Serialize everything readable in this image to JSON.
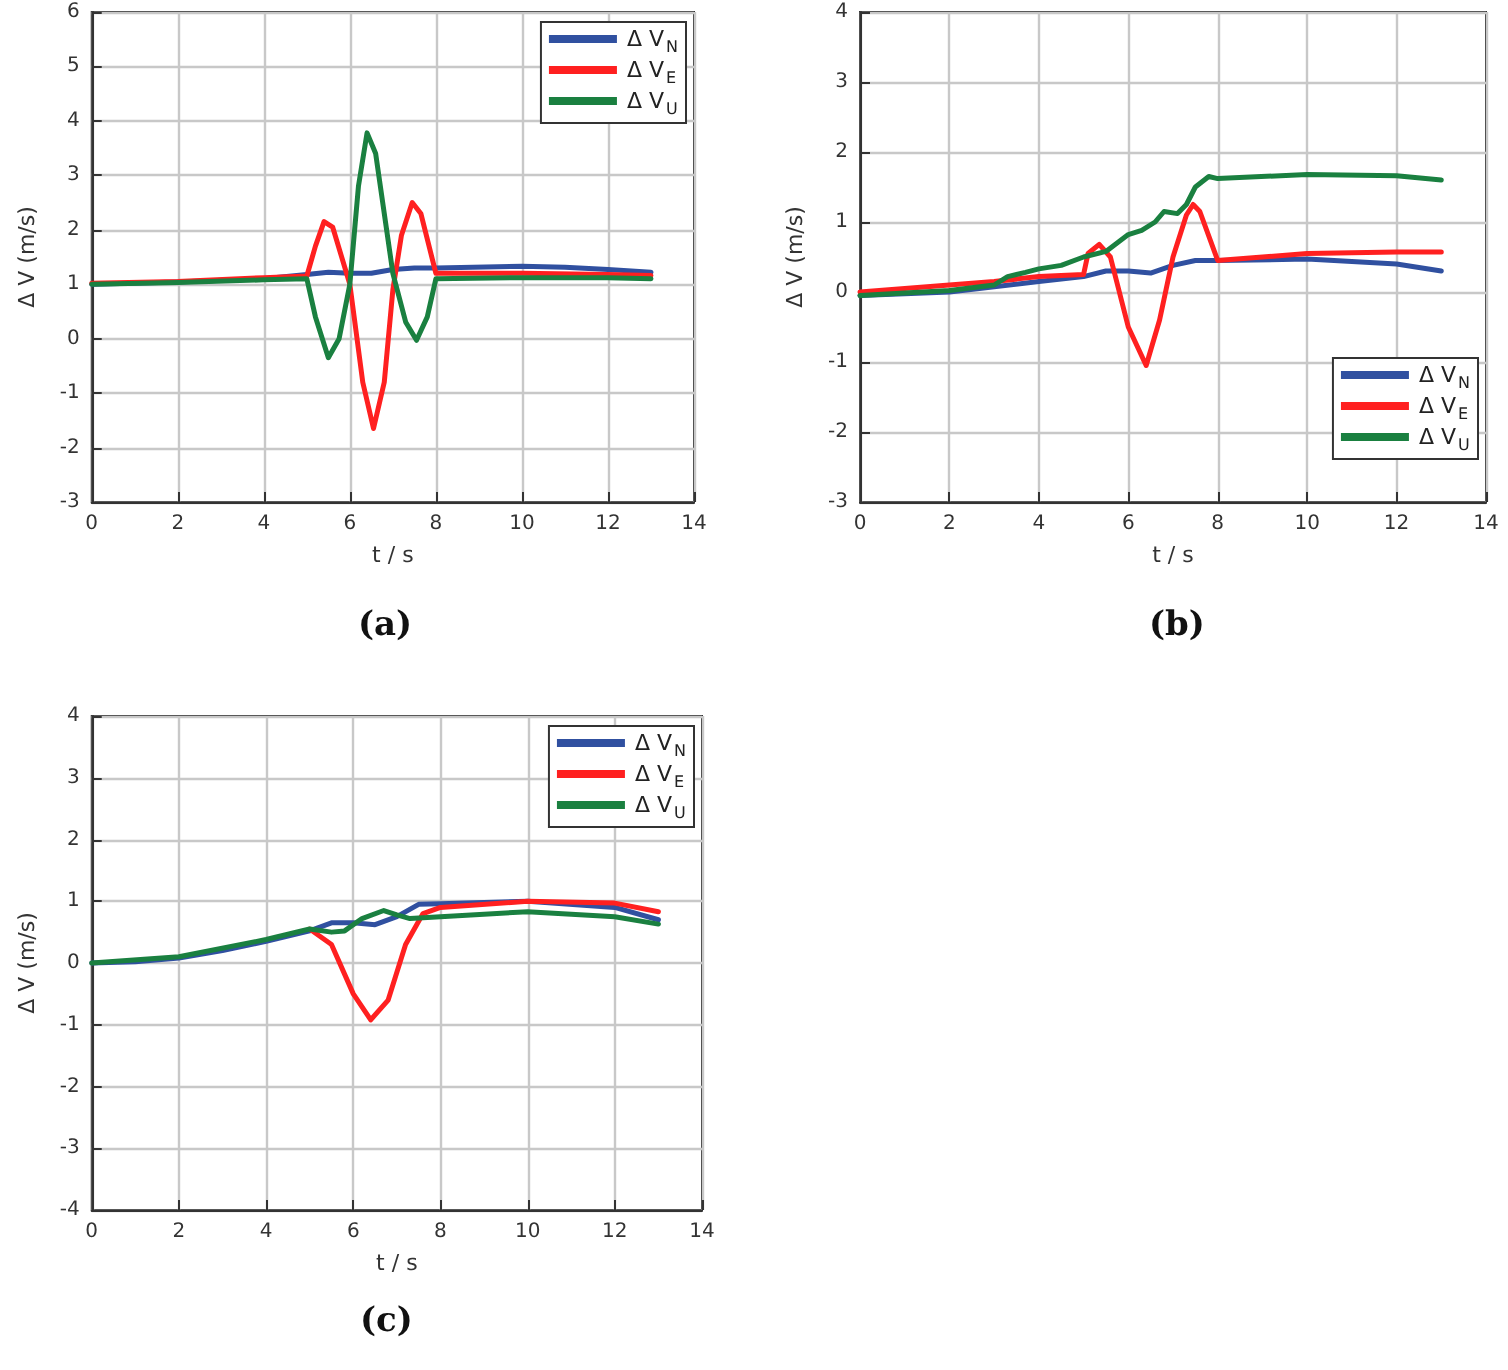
{
  "chart_data": [
    {
      "type": "line",
      "xlabel": "t / s",
      "ylabel": "Δ V (m/s)",
      "annotations": [
        "(a)"
      ],
      "xlim": [
        0,
        14
      ],
      "xticks": [
        0,
        2,
        4,
        6,
        8,
        10,
        12,
        14
      ],
      "ylim": [
        -3,
        6
      ],
      "yticks": [
        -3,
        -2,
        -1,
        0,
        1,
        2,
        3,
        4,
        5,
        6
      ],
      "grid": true,
      "legend": "top right",
      "marker": "none",
      "line_style": "solid",
      "series": [
        {
          "name": "Δ V$_{N}$",
          "color": "#3050a0",
          "x": [
            0,
            2,
            4,
            5,
            5.5,
            6,
            6.5,
            7,
            7.5,
            8,
            10,
            11,
            12,
            13
          ],
          "values": [
            1,
            1.04,
            1.1,
            1.18,
            1.22,
            1.2,
            1.2,
            1.27,
            1.3,
            1.3,
            1.33,
            1.31,
            1.27,
            1.22
          ]
        },
        {
          "name": "Δ V$_{E}$",
          "color": "#ff2020",
          "x": [
            0,
            2,
            4,
            5,
            5.2,
            5.4,
            5.6,
            6,
            6.3,
            6.55,
            6.8,
            7,
            7.2,
            7.45,
            7.65,
            8,
            10,
            12,
            13
          ],
          "values": [
            1.02,
            1.05,
            1.12,
            1.15,
            1.7,
            2.15,
            2.05,
            1.0,
            -0.8,
            -1.65,
            -0.8,
            0.9,
            1.9,
            2.5,
            2.3,
            1.2,
            1.2,
            1.18,
            1.16
          ]
        },
        {
          "name": "Δ V$_{U}$",
          "color": "#1a8040",
          "x": [
            0,
            2,
            4,
            5,
            5.2,
            5.5,
            5.75,
            6,
            6.2,
            6.4,
            6.6,
            7,
            7.3,
            7.55,
            7.8,
            8,
            10,
            12,
            13
          ],
          "values": [
            1,
            1.03,
            1.08,
            1.1,
            0.4,
            -0.35,
            0,
            1.0,
            2.8,
            3.78,
            3.4,
            1.2,
            0.3,
            -0.03,
            0.4,
            1.1,
            1.12,
            1.12,
            1.1
          ]
        }
      ]
    },
    {
      "type": "line",
      "xlabel": "t / s",
      "ylabel": "Δ V (m/s)",
      "annotations": [
        "(b)"
      ],
      "xlim": [
        0,
        14
      ],
      "xticks": [
        0,
        2,
        4,
        6,
        8,
        10,
        12,
        14
      ],
      "ylim": [
        -3,
        4
      ],
      "yticks": [
        -3,
        -2,
        -1,
        0,
        1,
        2,
        3,
        4
      ],
      "grid": true,
      "legend": "bottom right",
      "marker": "none",
      "line_style": "solid",
      "series": [
        {
          "name": "Δ V$_{N}$",
          "color": "#3050a0",
          "x": [
            0,
            2,
            4,
            5,
            5.5,
            6,
            6.5,
            7,
            7.5,
            8,
            10,
            12,
            13
          ],
          "values": [
            -0.05,
            0,
            0.15,
            0.22,
            0.3,
            0.3,
            0.27,
            0.38,
            0.45,
            0.45,
            0.47,
            0.4,
            0.3
          ]
        },
        {
          "name": "Δ V$_{E}$",
          "color": "#ff2020",
          "x": [
            0,
            2,
            3,
            4,
            5,
            5.1,
            5.35,
            5.6,
            6,
            6.4,
            6.7,
            7,
            7.3,
            7.45,
            7.6,
            8,
            10,
            12,
            13
          ],
          "values": [
            0,
            0.1,
            0.15,
            0.22,
            0.25,
            0.55,
            0.68,
            0.5,
            -0.5,
            -1.05,
            -0.4,
            0.5,
            1.1,
            1.25,
            1.15,
            0.45,
            0.55,
            0.57,
            0.57
          ]
        },
        {
          "name": "Δ V$_{U}$",
          "color": "#1a8040",
          "x": [
            0,
            2,
            3,
            3.3,
            3.7,
            4,
            4.5,
            5,
            5.5,
            6,
            6.3,
            6.6,
            6.8,
            7.1,
            7.3,
            7.5,
            7.8,
            8,
            10,
            12,
            13
          ],
          "values": [
            -0.05,
            0.02,
            0.1,
            0.22,
            0.28,
            0.33,
            0.38,
            0.5,
            0.58,
            0.82,
            0.88,
            1.0,
            1.15,
            1.12,
            1.25,
            1.5,
            1.65,
            1.62,
            1.68,
            1.66,
            1.6
          ]
        }
      ]
    },
    {
      "type": "line",
      "xlabel": "t / s",
      "ylabel": "Δ V (m/s)",
      "annotations": [
        "(c)"
      ],
      "xlim": [
        0,
        14
      ],
      "xticks": [
        0,
        2,
        4,
        6,
        8,
        10,
        12,
        14
      ],
      "ylim": [
        -4,
        4
      ],
      "yticks": [
        -4,
        -3,
        -2,
        -1,
        0,
        1,
        2,
        3,
        4
      ],
      "grid": true,
      "legend": "top right",
      "marker": "none",
      "line_style": "solid",
      "series": [
        {
          "name": "Δ V$_{N}$",
          "color": "#3050a0",
          "x": [
            0,
            1,
            2,
            3,
            4,
            5,
            5.5,
            6,
            6.5,
            7,
            7.5,
            8,
            10,
            12,
            13
          ],
          "values": [
            0,
            0.02,
            0.08,
            0.2,
            0.35,
            0.52,
            0.65,
            0.65,
            0.62,
            0.75,
            0.95,
            0.96,
            1.0,
            0.9,
            0.7
          ]
        },
        {
          "name": "Δ V$_{E}$",
          "color": "#ff2020",
          "x": [
            5,
            5.5,
            6,
            6.4,
            6.8,
            7.2,
            7.6,
            8,
            10,
            12,
            13
          ],
          "values": [
            0.55,
            0.3,
            -0.5,
            -0.92,
            -0.6,
            0.3,
            0.8,
            0.9,
            1.0,
            0.97,
            0.83
          ]
        },
        {
          "name": "Δ V$_{U}$",
          "color": "#1a8040",
          "x": [
            0,
            2,
            4,
            5,
            5.5,
            5.8,
            6.2,
            6.7,
            7,
            7.3,
            8,
            10,
            12,
            13
          ],
          "values": [
            0,
            0.1,
            0.38,
            0.55,
            0.5,
            0.52,
            0.72,
            0.85,
            0.78,
            0.72,
            0.75,
            0.83,
            0.75,
            0.63
          ]
        }
      ]
    }
  ]
}
